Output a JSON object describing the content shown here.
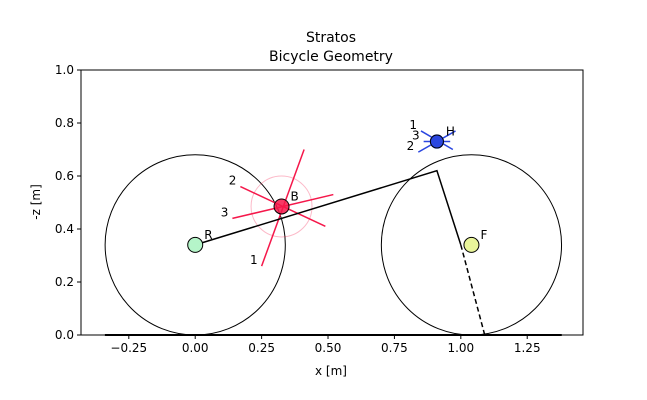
{
  "chart_data": {
    "type": "diagram",
    "title": "Stratos",
    "subtitle": "Bicycle Geometry",
    "xlabel": "x [m]",
    "ylabel": "-z [m]",
    "xlim": [
      -0.43,
      1.46
    ],
    "ylim": [
      0.0,
      1.0
    ],
    "xticks": [
      -0.25,
      0.0,
      0.25,
      0.5,
      0.75,
      1.0,
      1.25
    ],
    "xtick_labels": [
      "−0.25",
      "0.00",
      "0.25",
      "0.50",
      "0.75",
      "1.00",
      "1.25"
    ],
    "yticks": [
      0.0,
      0.2,
      0.4,
      0.6,
      0.8,
      1.0
    ],
    "ytick_labels": [
      "0.0",
      "0.2",
      "0.4",
      "0.6",
      "0.8",
      "1.0"
    ],
    "grid": false,
    "ground": {
      "x": [
        -0.34,
        1.38
      ],
      "y": 0.0
    },
    "wheels": [
      {
        "center": [
          0.0,
          0.34
        ],
        "radius": 0.34
      },
      {
        "center": [
          1.04,
          0.34
        ],
        "radius": 0.34
      }
    ],
    "frame_lines": [
      {
        "points": [
          [
            0.0,
            0.34
          ],
          [
            0.91,
            0.62
          ],
          [
            1.0,
            0.34
          ]
        ],
        "style": "solid"
      },
      {
        "points": [
          [
            1.0,
            0.34
          ],
          [
            1.09,
            0.0
          ]
        ],
        "style": "dashed"
      }
    ],
    "points": [
      {
        "label": "R",
        "x": 0.0,
        "y": 0.34,
        "color": "#b5f5c9"
      },
      {
        "label": "B",
        "x": 0.325,
        "y": 0.485,
        "color": "#f5174a"
      },
      {
        "label": "F",
        "x": 1.04,
        "y": 0.34,
        "color": "#e9f59a"
      },
      {
        "label": "H",
        "x": 0.91,
        "y": 0.73,
        "color": "#2a46e0"
      }
    ],
    "inertia_ellipses": [
      {
        "at": "B",
        "color": "#f5174a",
        "radius": 0.115,
        "axes": [
          {
            "label": "1",
            "from": [
              0.25,
              0.26
            ],
            "to": [
              0.41,
              0.7
            ]
          },
          {
            "label": "2",
            "from": [
              0.17,
              0.56
            ],
            "to": [
              0.49,
              0.41
            ]
          },
          {
            "label": "3",
            "from": [
              0.14,
              0.44
            ],
            "to": [
              0.52,
              0.53
            ]
          }
        ]
      },
      {
        "at": "H",
        "color": "#2a46e0",
        "radius": 0.025,
        "axes": [
          {
            "label": "1",
            "from": [
              0.85,
              0.77
            ],
            "to": [
              0.97,
              0.7
            ]
          },
          {
            "label": "2",
            "from": [
              0.84,
              0.69
            ],
            "to": [
              0.98,
              0.77
            ]
          },
          {
            "label": "3",
            "from": [
              0.86,
              0.73
            ],
            "to": [
              0.96,
              0.73
            ]
          }
        ]
      }
    ]
  }
}
